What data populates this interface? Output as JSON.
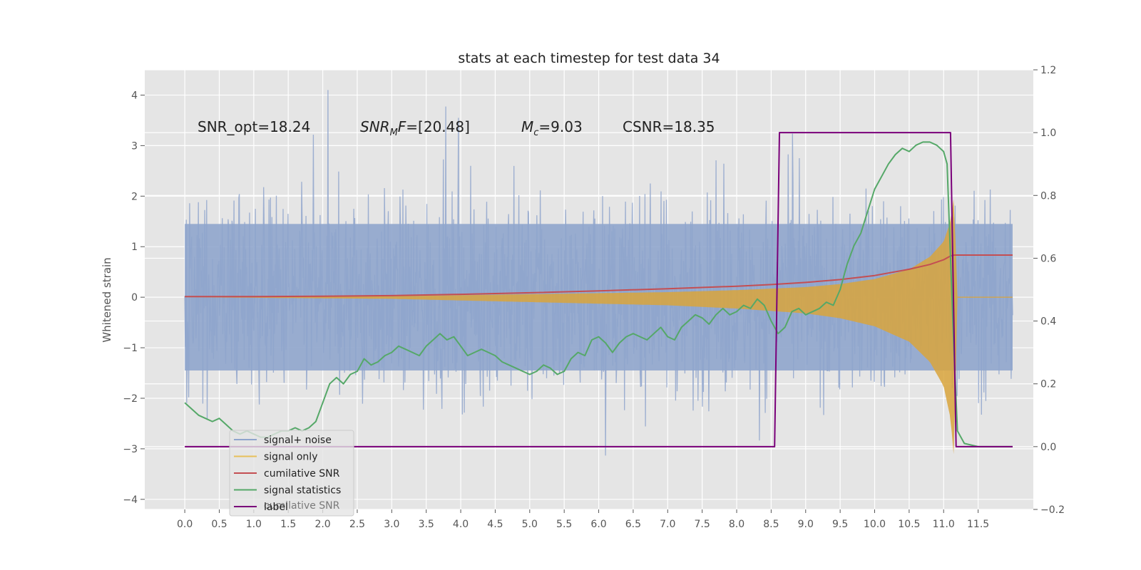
{
  "chart_data": {
    "type": "line",
    "title": "stats at each timestep for test data 34",
    "ylabel": "Whitened strain",
    "xlabel": "",
    "grid": true,
    "legend_position": "lower-left",
    "x_ticks": [
      "0.0",
      "0.5",
      "1.0",
      "1.5",
      "2.0",
      "2.5",
      "3.0",
      "3.5",
      "4.0",
      "4.5",
      "5.0",
      "5.5",
      "6.0",
      "6.5",
      "7.0",
      "7.5",
      "8.0",
      "8.5",
      "9.0",
      "9.5",
      "10.0",
      "10.5",
      "11.0",
      "11.5"
    ],
    "y_ticks": [
      "4",
      "3",
      "2",
      "1",
      "0",
      "−1",
      "−2",
      "−3",
      "−4"
    ],
    "y2_ticks": [
      "1.2",
      "1.0",
      "0.8",
      "0.6",
      "0.4",
      "0.2",
      "0.0",
      "−0.2"
    ],
    "xlim": [
      -0.58,
      12.3
    ],
    "ylim": [
      -4.2,
      4.5
    ],
    "y2lim": [
      -0.2,
      1.2
    ],
    "annotations": [
      {
        "id": "snr-opt",
        "text": "SNR_opt=18.24"
      },
      {
        "id": "snr-mf",
        "text": "SNR_MF=[20.48]",
        "rendered": {
          "pre": "SNR",
          "sub": "M",
          "post": "F=[20.48]"
        }
      },
      {
        "id": "mc",
        "text": "M_c=9.03",
        "rendered": {
          "pre": "M",
          "sub": "c",
          "post": "=9.03"
        }
      },
      {
        "id": "csnr",
        "text": "CSNR=18.35"
      }
    ],
    "legend": [
      {
        "name": "signal+ noise",
        "color": "#8fa5cc"
      },
      {
        "name": "signal only",
        "color": "#e8c05a"
      },
      {
        "name": "cumilative SNR",
        "color": "#c44e52"
      },
      {
        "name": "signal statistics",
        "color": "#55a868"
      },
      {
        "name": "label",
        "color": "#7a007a"
      }
    ],
    "legend_hidden_text": "cumilative SNR",
    "series": [
      {
        "name": "signal+ noise",
        "axis": "left",
        "style": "noise band",
        "x_range": [
          0,
          12.0
        ],
        "typical_range": [
          -1.8,
          1.8
        ],
        "extreme_range": [
          -3.7,
          4.1
        ],
        "color": "#8fa5cc"
      },
      {
        "name": "signal only",
        "axis": "left",
        "style": "chirp envelope",
        "x": [
          0,
          3.0,
          5.0,
          7.0,
          8.0,
          9.0,
          9.5,
          10.0,
          10.5,
          10.8,
          11.0,
          11.1,
          11.15,
          11.2
        ],
        "amplitude": [
          0.0,
          0.02,
          0.06,
          0.1,
          0.14,
          0.2,
          0.26,
          0.36,
          0.55,
          0.8,
          1.1,
          1.5,
          2.0,
          0.0
        ],
        "color": "#d9a43c"
      },
      {
        "name": "cumilative SNR",
        "axis": "right",
        "x": [
          0,
          1,
          2,
          3,
          4,
          5,
          6,
          7,
          8,
          8.5,
          9,
          9.5,
          10,
          10.5,
          10.8,
          11.0,
          11.1,
          11.15,
          11.2,
          12.0
        ],
        "y": [
          0.478,
          0.478,
          0.479,
          0.481,
          0.485,
          0.49,
          0.496,
          0.503,
          0.511,
          0.516,
          0.523,
          0.532,
          0.545,
          0.565,
          0.58,
          0.595,
          0.607,
          0.61,
          0.61,
          0.61
        ],
        "color": "#c44e52"
      },
      {
        "name": "signal statistics",
        "axis": "right",
        "x": [
          0,
          0.1,
          0.2,
          0.3,
          0.4,
          0.5,
          0.6,
          0.7,
          0.8,
          0.9,
          1.0,
          1.1,
          1.2,
          1.3,
          1.4,
          1.5,
          1.6,
          1.7,
          1.8,
          1.9,
          2.0,
          2.1,
          2.2,
          2.3,
          2.4,
          2.5,
          2.6,
          2.7,
          2.8,
          2.9,
          3.0,
          3.1,
          3.2,
          3.3,
          3.4,
          3.5,
          3.6,
          3.7,
          3.8,
          3.9,
          4.0,
          4.1,
          4.2,
          4.3,
          4.4,
          4.5,
          4.6,
          4.7,
          4.8,
          4.9,
          5.0,
          5.1,
          5.2,
          5.3,
          5.4,
          5.5,
          5.6,
          5.7,
          5.8,
          5.9,
          6.0,
          6.1,
          6.2,
          6.3,
          6.4,
          6.5,
          6.6,
          6.7,
          6.8,
          6.9,
          7.0,
          7.1,
          7.2,
          7.3,
          7.4,
          7.5,
          7.6,
          7.7,
          7.8,
          7.9,
          8.0,
          8.1,
          8.2,
          8.3,
          8.4,
          8.5,
          8.6,
          8.7,
          8.8,
          8.9,
          9.0,
          9.1,
          9.2,
          9.3,
          9.4,
          9.5,
          9.6,
          9.7,
          9.8,
          9.9,
          10.0,
          10.1,
          10.2,
          10.3,
          10.4,
          10.5,
          10.6,
          10.7,
          10.8,
          10.9,
          11.0,
          11.05,
          11.1,
          11.15,
          11.2,
          11.3,
          11.5,
          12.0
        ],
        "y": [
          0.14,
          0.12,
          0.1,
          0.09,
          0.08,
          0.09,
          0.07,
          0.05,
          0.04,
          0.05,
          0.04,
          0.03,
          0.03,
          0.04,
          0.05,
          0.05,
          0.06,
          0.05,
          0.06,
          0.08,
          0.14,
          0.2,
          0.22,
          0.2,
          0.23,
          0.24,
          0.28,
          0.26,
          0.27,
          0.29,
          0.3,
          0.32,
          0.31,
          0.3,
          0.29,
          0.32,
          0.34,
          0.36,
          0.34,
          0.35,
          0.32,
          0.29,
          0.3,
          0.31,
          0.3,
          0.29,
          0.27,
          0.26,
          0.25,
          0.24,
          0.23,
          0.24,
          0.26,
          0.25,
          0.23,
          0.24,
          0.28,
          0.3,
          0.29,
          0.34,
          0.35,
          0.33,
          0.3,
          0.33,
          0.35,
          0.36,
          0.35,
          0.34,
          0.36,
          0.38,
          0.35,
          0.34,
          0.38,
          0.4,
          0.42,
          0.41,
          0.39,
          0.42,
          0.44,
          0.42,
          0.43,
          0.45,
          0.44,
          0.47,
          0.45,
          0.4,
          0.36,
          0.38,
          0.43,
          0.44,
          0.42,
          0.43,
          0.44,
          0.46,
          0.45,
          0.5,
          0.58,
          0.64,
          0.68,
          0.75,
          0.82,
          0.86,
          0.9,
          0.93,
          0.95,
          0.94,
          0.96,
          0.97,
          0.97,
          0.96,
          0.94,
          0.9,
          0.6,
          0.3,
          0.05,
          0.01,
          0.0,
          0.0
        ],
        "color": "#55a868"
      },
      {
        "name": "label",
        "axis": "right",
        "x": [
          0,
          8.55,
          8.62,
          11.1,
          11.18,
          12.0
        ],
        "y": [
          0,
          0,
          1,
          1,
          0,
          0
        ],
        "color": "#7a007a"
      }
    ]
  }
}
